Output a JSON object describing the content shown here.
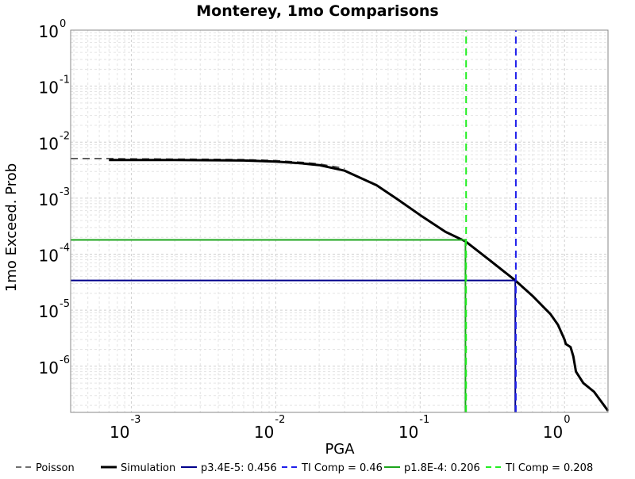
{
  "chart_data": {
    "type": "line",
    "title": "Monterey, 1mo Comparisons",
    "xlabel": "PGA",
    "ylabel": "1mo Exceed. Prob",
    "x_scale": "log",
    "y_scale": "log",
    "xlim": [
      0.00038,
      2.0
    ],
    "ylim": [
      1.5e-07,
      1.0
    ],
    "grid": true,
    "legend_position": "bottom",
    "x_ticks": [
      {
        "base": "10",
        "exp": "-3",
        "value": 0.001
      },
      {
        "base": "10",
        "exp": "-2",
        "value": 0.01
      },
      {
        "base": "10",
        "exp": "-1",
        "value": 0.1
      },
      {
        "base": "10",
        "exp": "0",
        "value": 1
      }
    ],
    "y_ticks": [
      {
        "base": "10",
        "exp": "0",
        "value": 1
      },
      {
        "base": "10",
        "exp": "-1",
        "value": 0.1
      },
      {
        "base": "10",
        "exp": "-2",
        "value": 0.01
      },
      {
        "base": "10",
        "exp": "-3",
        "value": 0.001
      },
      {
        "base": "10",
        "exp": "-4",
        "value": 0.0001
      },
      {
        "base": "10",
        "exp": "-5",
        "value": 1e-05
      },
      {
        "base": "10",
        "exp": "-6",
        "value": 1e-06
      }
    ],
    "series": [
      {
        "name": "Poisson",
        "color": "#404040",
        "dash": "dashed",
        "width": 1.6,
        "x": [
          0.00038,
          0.0007,
          0.001,
          0.002,
          0.004,
          0.006,
          0.01,
          0.015,
          0.02,
          0.03
        ],
        "y": [
          0.0051,
          0.0051,
          0.00505,
          0.005,
          0.00495,
          0.0049,
          0.0047,
          0.0044,
          0.0041,
          0.0034
        ]
      },
      {
        "name": "Simulation",
        "color": "#000000",
        "dash": "solid",
        "width": 3,
        "x": [
          0.0007,
          0.001,
          0.002,
          0.004,
          0.006,
          0.01,
          0.015,
          0.02,
          0.03,
          0.05,
          0.07,
          0.1,
          0.15,
          0.206,
          0.3,
          0.456,
          0.6,
          0.8,
          0.9,
          1.0,
          1.02,
          1.1,
          1.15,
          1.2,
          1.35,
          1.6,
          2.0
        ],
        "y": [
          0.0048,
          0.0048,
          0.0048,
          0.00475,
          0.0047,
          0.0045,
          0.0042,
          0.0039,
          0.0031,
          0.0017,
          0.00095,
          0.0005,
          0.00025,
          0.00017,
          8e-05,
          3.4e-05,
          1.8e-05,
          8.5e-06,
          5.5e-06,
          3e-06,
          2.5e-06,
          2.2e-06,
          1.5e-06,
          8e-07,
          5e-07,
          3.5e-07,
          1.6e-07
        ]
      },
      {
        "name": "p3.4E-5: 0.456",
        "color": "#00008B",
        "dash": "solid",
        "width": 2,
        "x": [
          0.00038,
          0.456,
          0.456
        ],
        "y": [
          3.4e-05,
          3.4e-05,
          1.5e-07
        ]
      },
      {
        "name": "TI Comp = 0.46",
        "color": "#1E1EEB",
        "dash": "dashed",
        "width": 2,
        "x": [
          0.46,
          0.46
        ],
        "y": [
          1.5e-07,
          1.0
        ]
      },
      {
        "name": "p1.8E-4: 0.206",
        "color": "#1CA51C",
        "dash": "solid",
        "width": 2,
        "x": [
          0.00038,
          0.206,
          0.206
        ],
        "y": [
          0.00018,
          0.00018,
          1.5e-07
        ]
      },
      {
        "name": "TI Comp = 0.208",
        "color": "#22EE22",
        "dash": "dashed",
        "width": 2,
        "x": [
          0.208,
          0.208
        ],
        "y": [
          1.5e-07,
          1.0
        ]
      }
    ]
  }
}
